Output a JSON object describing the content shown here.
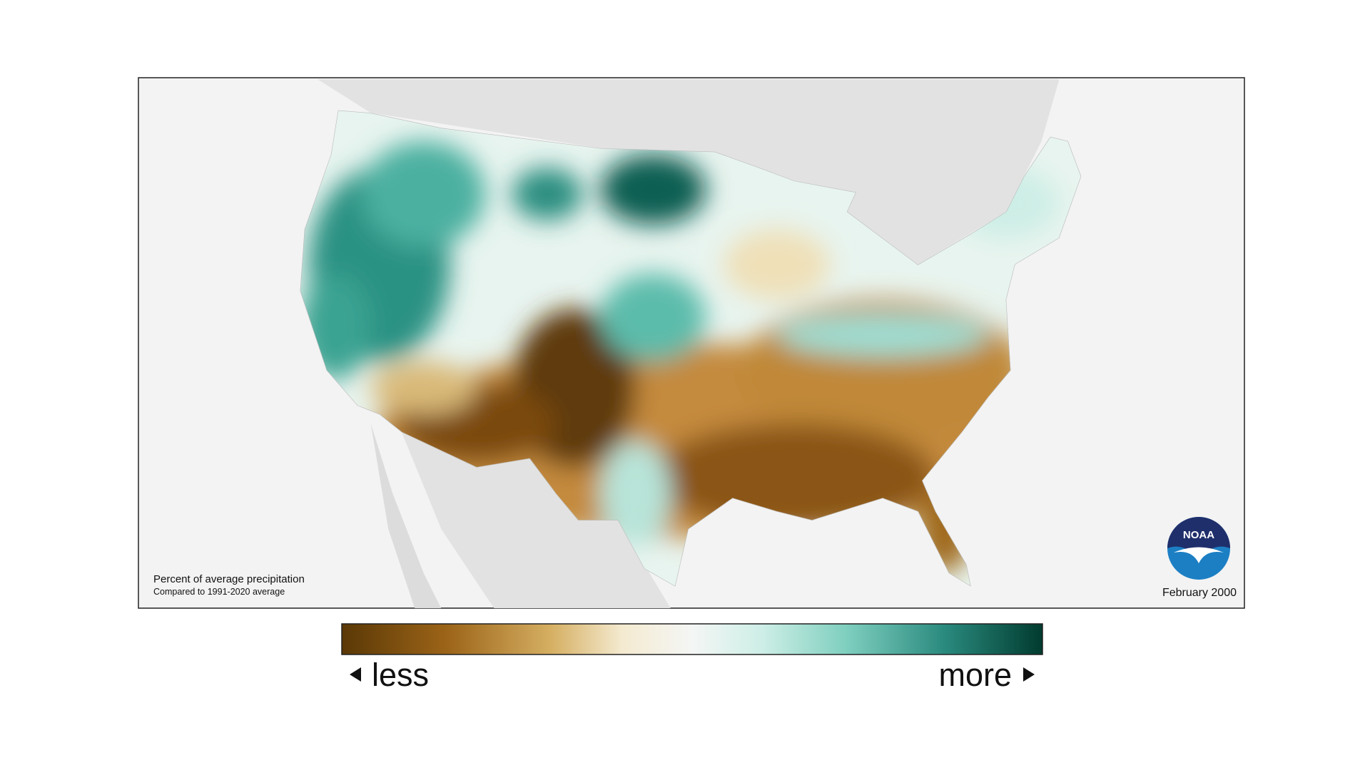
{
  "map": {
    "caption_title": "Percent of average precipitation",
    "caption_subtitle": "Compared to 1991-2020 average",
    "date": "February 2000"
  },
  "logo": {
    "text": "NOAA"
  },
  "legend": {
    "low_label": "less",
    "high_label": "more"
  }
}
